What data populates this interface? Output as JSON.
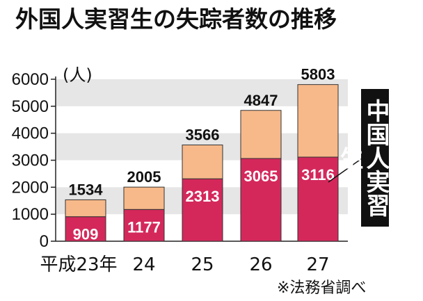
{
  "chart_data": {
    "type": "bar",
    "stacked": true,
    "title": "外国人実習生の失踪者数の推移",
    "unit_label": "(人)",
    "categories": [
      "平成23年",
      "24",
      "25",
      "26",
      "27"
    ],
    "series": [
      {
        "name": "中国人実習生",
        "values": [
          909,
          1177,
          2313,
          3065,
          3116
        ],
        "color": "#d4285b"
      },
      {
        "name": "",
        "values": [
          625,
          828,
          1253,
          1782,
          2687
        ],
        "color": "#f7b98a"
      }
    ],
    "totals": [
      1534,
      2005,
      3566,
      4847,
      5803
    ],
    "yticks": [
      0,
      1000,
      2000,
      3000,
      4000,
      5000,
      6000
    ],
    "ylim": [
      0,
      6000
    ],
    "grid": "alternating-bands",
    "callout": "中国人実習生",
    "source": "※法務省調べ"
  }
}
